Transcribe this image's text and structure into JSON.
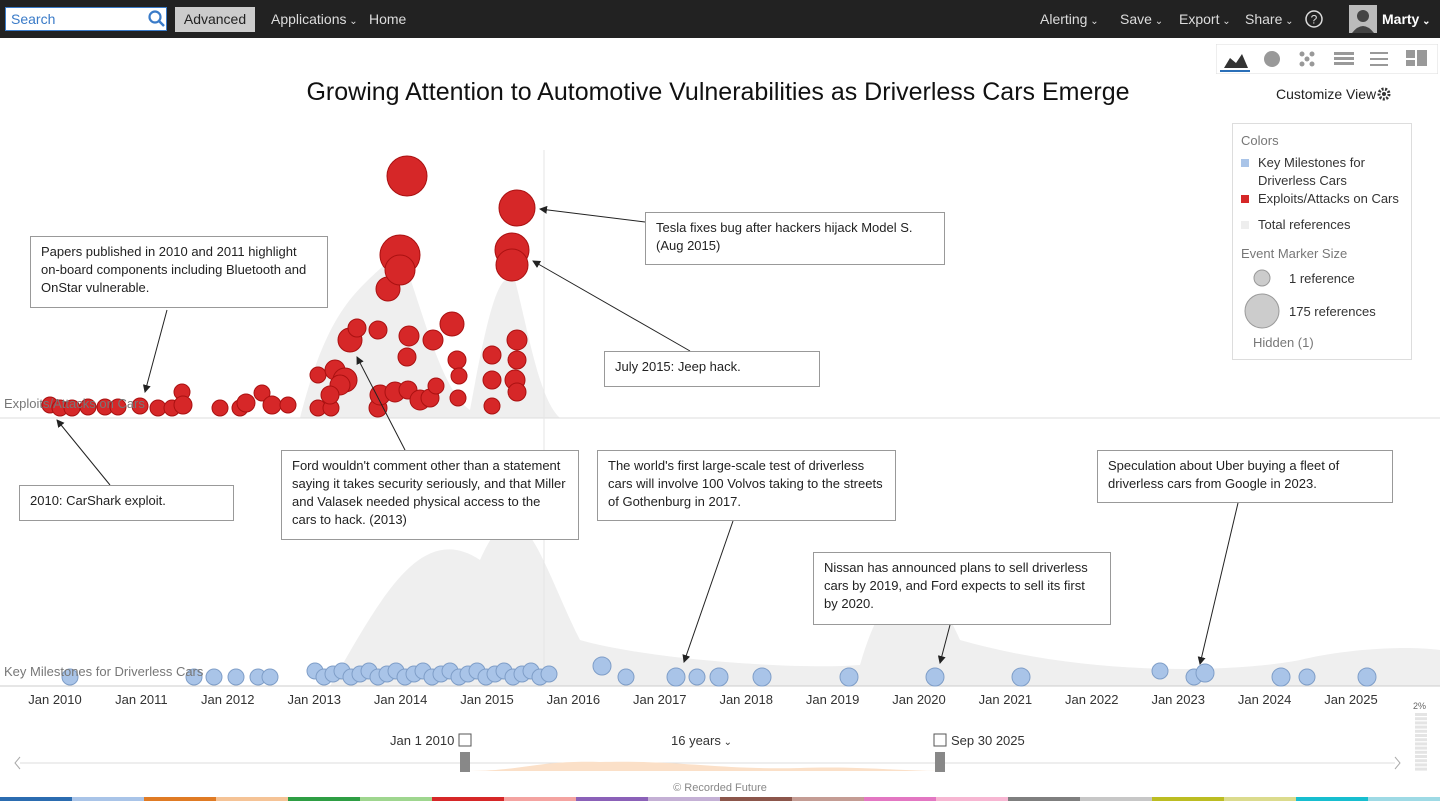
{
  "toolbar": {
    "search": "Search",
    "advanced": "Advanced",
    "menus": [
      "Applications",
      "Home"
    ],
    "right_menus": [
      "Alerting",
      "Save",
      "Export",
      "Share"
    ],
    "user": "Marty"
  },
  "title": "Growing Attention to Automotive Vulnerabilities as Driverless Cars Emerge",
  "customize": "Customize View",
  "legend": {
    "colors_title": "Colors",
    "items": [
      {
        "label": "Key Milestones for Driverless Cars",
        "color": "#a9c4e8"
      },
      {
        "label": "Exploits/Attacks on Cars",
        "color": "#d62728"
      },
      {
        "label": "Total references",
        "color": "#eeeeee"
      }
    ],
    "size_title": "Event Marker Size",
    "sizes": [
      "1 reference",
      "175 references"
    ],
    "hidden": "Hidden (1)"
  },
  "lanes": [
    "Exploits/Attacks on Cars",
    "Key Milestones for Driverless Cars"
  ],
  "annotations": [
    "Papers published in 2010 and 2011 highlight on-board components including Bluetooth and OnStar vulnerable.",
    "Tesla fixes bug after hackers hijack Model S. (Aug 2015)",
    "July 2015: Jeep hack.",
    "2010: CarShark exploit.",
    "Ford wouldn't comment other than a statement saying it takes security seriously, and that Miller and Valasek needed physical access to the cars to hack. (2013)",
    "The world's first large-scale test of driverless cars will involve 100 Volvos taking to the streets of Gothenburg in 2017.",
    "Nissan has announced plans to sell driverless cars by 2019, and Ford expects to sell its first by 2020.",
    "Speculation about Uber buying a fleet of driverless cars from Google in 2023."
  ],
  "axis_labels": [
    "Jan 2010",
    "Jan 2011",
    "Jan 2012",
    "Jan 2013",
    "Jan 2014",
    "Jan 2015",
    "Jan 2016",
    "Jan 2017",
    "Jan 2018",
    "Jan 2019",
    "Jan 2020",
    "Jan 2021",
    "Jan 2022",
    "Jan 2023",
    "Jan 2024",
    "Jan 2025"
  ],
  "range": {
    "start": "Jan 1 2010",
    "span": "16 years",
    "end": "Sep 30 2025"
  },
  "scale_label": "2%",
  "footer": "© Recorded Future"
}
